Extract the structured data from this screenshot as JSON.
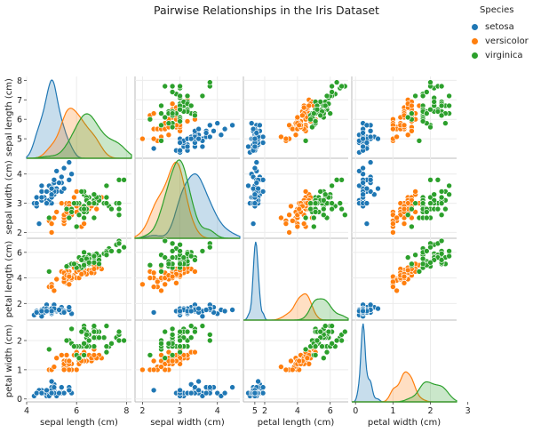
{
  "chart_data": {
    "type": "scatter",
    "title": "Pairwise Relationships in the Iris Dataset",
    "variables": [
      "sepal length (cm)",
      "sepal width (cm)",
      "petal length (cm)",
      "petal width (cm)"
    ],
    "axis_limits": [
      [
        4.0,
        8.2
      ],
      [
        1.8,
        4.6
      ],
      [
        0.7,
        7.1
      ],
      [
        -0.1,
        2.7
      ]
    ],
    "x_ticks": [
      [
        4,
        6,
        8
      ],
      [
        2,
        3,
        4,
        5
      ],
      [
        2,
        4,
        6
      ],
      [
        0,
        1,
        2,
        3
      ]
    ],
    "y_ticks": [
      [
        5,
        6,
        7,
        8
      ],
      [
        2,
        3,
        4
      ],
      [
        2,
        4,
        6
      ],
      [
        0,
        1,
        2
      ]
    ],
    "legend": {
      "title": "Species",
      "position": "top-right",
      "entries": [
        {
          "name": "setosa",
          "color": "#1f77b4"
        },
        {
          "name": "versicolor",
          "color": "#ff7f0e"
        },
        {
          "name": "virginica",
          "color": "#2ca02c"
        }
      ]
    },
    "diagonal": "kde",
    "grid": true,
    "series": [
      {
        "name": "setosa",
        "color": "#1f77b4",
        "points": [
          [
            5.1,
            3.5,
            1.4,
            0.2
          ],
          [
            4.9,
            3.0,
            1.4,
            0.2
          ],
          [
            4.7,
            3.2,
            1.3,
            0.2
          ],
          [
            4.6,
            3.1,
            1.5,
            0.2
          ],
          [
            5.0,
            3.6,
            1.4,
            0.2
          ],
          [
            5.4,
            3.9,
            1.7,
            0.4
          ],
          [
            4.6,
            3.4,
            1.4,
            0.3
          ],
          [
            5.0,
            3.4,
            1.5,
            0.2
          ],
          [
            4.4,
            2.9,
            1.4,
            0.2
          ],
          [
            4.9,
            3.1,
            1.5,
            0.1
          ],
          [
            5.4,
            3.7,
            1.5,
            0.2
          ],
          [
            4.8,
            3.4,
            1.6,
            0.2
          ],
          [
            4.8,
            3.0,
            1.4,
            0.1
          ],
          [
            4.3,
            3.0,
            1.1,
            0.1
          ],
          [
            5.8,
            4.0,
            1.2,
            0.2
          ],
          [
            5.7,
            4.4,
            1.5,
            0.4
          ],
          [
            5.4,
            3.9,
            1.3,
            0.4
          ],
          [
            5.1,
            3.5,
            1.4,
            0.3
          ],
          [
            5.7,
            3.8,
            1.7,
            0.3
          ],
          [
            5.1,
            3.8,
            1.5,
            0.3
          ],
          [
            5.4,
            3.4,
            1.7,
            0.2
          ],
          [
            5.1,
            3.7,
            1.5,
            0.4
          ],
          [
            4.6,
            3.6,
            1.0,
            0.2
          ],
          [
            5.1,
            3.3,
            1.7,
            0.5
          ],
          [
            4.8,
            3.4,
            1.9,
            0.2
          ],
          [
            5.0,
            3.0,
            1.6,
            0.2
          ],
          [
            5.0,
            3.4,
            1.6,
            0.4
          ],
          [
            5.2,
            3.5,
            1.5,
            0.2
          ],
          [
            5.2,
            3.4,
            1.4,
            0.2
          ],
          [
            4.7,
            3.2,
            1.6,
            0.2
          ],
          [
            4.8,
            3.1,
            1.6,
            0.2
          ],
          [
            5.4,
            3.4,
            1.5,
            0.4
          ],
          [
            5.2,
            4.1,
            1.5,
            0.1
          ],
          [
            5.5,
            4.2,
            1.4,
            0.2
          ],
          [
            4.9,
            3.1,
            1.5,
            0.2
          ],
          [
            5.0,
            3.2,
            1.2,
            0.2
          ],
          [
            5.5,
            3.5,
            1.3,
            0.2
          ],
          [
            4.9,
            3.6,
            1.4,
            0.1
          ],
          [
            4.4,
            3.0,
            1.3,
            0.2
          ],
          [
            5.1,
            3.4,
            1.5,
            0.2
          ],
          [
            5.0,
            3.5,
            1.3,
            0.3
          ],
          [
            4.5,
            2.3,
            1.3,
            0.3
          ],
          [
            4.4,
            3.2,
            1.3,
            0.2
          ],
          [
            5.0,
            3.5,
            1.6,
            0.6
          ],
          [
            5.1,
            3.8,
            1.9,
            0.4
          ],
          [
            4.8,
            3.0,
            1.4,
            0.3
          ],
          [
            5.1,
            3.8,
            1.6,
            0.2
          ],
          [
            4.6,
            3.2,
            1.4,
            0.2
          ],
          [
            5.3,
            3.7,
            1.5,
            0.2
          ],
          [
            5.0,
            3.3,
            1.4,
            0.2
          ]
        ]
      },
      {
        "name": "versicolor",
        "color": "#ff7f0e",
        "points": [
          [
            7.0,
            3.2,
            4.7,
            1.4
          ],
          [
            6.4,
            3.2,
            4.5,
            1.5
          ],
          [
            6.9,
            3.1,
            4.9,
            1.5
          ],
          [
            5.5,
            2.3,
            4.0,
            1.3
          ],
          [
            6.5,
            2.8,
            4.6,
            1.5
          ],
          [
            5.7,
            2.8,
            4.5,
            1.3
          ],
          [
            6.3,
            3.3,
            4.7,
            1.6
          ],
          [
            4.9,
            2.4,
            3.3,
            1.0
          ],
          [
            6.6,
            2.9,
            4.6,
            1.3
          ],
          [
            5.2,
            2.7,
            3.9,
            1.4
          ],
          [
            5.0,
            2.0,
            3.5,
            1.0
          ],
          [
            5.9,
            3.0,
            4.2,
            1.5
          ],
          [
            6.0,
            2.2,
            4.0,
            1.0
          ],
          [
            6.1,
            2.9,
            4.7,
            1.4
          ],
          [
            5.6,
            2.9,
            3.6,
            1.3
          ],
          [
            6.7,
            3.1,
            4.4,
            1.4
          ],
          [
            5.6,
            3.0,
            4.5,
            1.5
          ],
          [
            5.8,
            2.7,
            4.1,
            1.0
          ],
          [
            6.2,
            2.2,
            4.5,
            1.5
          ],
          [
            5.6,
            2.5,
            3.9,
            1.1
          ],
          [
            5.9,
            3.2,
            4.8,
            1.8
          ],
          [
            6.1,
            2.8,
            4.0,
            1.3
          ],
          [
            6.3,
            2.5,
            4.9,
            1.5
          ],
          [
            6.1,
            2.8,
            4.7,
            1.2
          ],
          [
            6.4,
            2.9,
            4.3,
            1.3
          ],
          [
            6.6,
            3.0,
            4.4,
            1.4
          ],
          [
            6.8,
            2.8,
            4.8,
            1.4
          ],
          [
            6.7,
            3.0,
            5.0,
            1.7
          ],
          [
            6.0,
            2.9,
            4.5,
            1.5
          ],
          [
            5.7,
            2.6,
            3.5,
            1.0
          ],
          [
            5.5,
            2.4,
            3.8,
            1.1
          ],
          [
            5.5,
            2.4,
            3.7,
            1.0
          ],
          [
            5.8,
            2.7,
            3.9,
            1.2
          ],
          [
            6.0,
            2.7,
            5.1,
            1.6
          ],
          [
            5.4,
            3.0,
            4.5,
            1.5
          ],
          [
            6.0,
            3.4,
            4.5,
            1.6
          ],
          [
            6.7,
            3.1,
            4.7,
            1.5
          ],
          [
            6.3,
            2.3,
            4.4,
            1.3
          ],
          [
            5.6,
            3.0,
            4.1,
            1.3
          ],
          [
            5.5,
            2.5,
            4.0,
            1.3
          ],
          [
            5.5,
            2.6,
            4.4,
            1.2
          ],
          [
            6.1,
            3.0,
            4.6,
            1.4
          ],
          [
            5.8,
            2.6,
            4.0,
            1.2
          ],
          [
            5.0,
            2.3,
            3.3,
            1.0
          ],
          [
            5.6,
            2.7,
            4.2,
            1.3
          ],
          [
            5.7,
            3.0,
            4.2,
            1.2
          ],
          [
            5.7,
            2.9,
            4.2,
            1.3
          ],
          [
            6.2,
            2.9,
            4.3,
            1.3
          ],
          [
            5.1,
            2.5,
            3.0,
            1.1
          ],
          [
            5.7,
            2.8,
            4.1,
            1.3
          ]
        ]
      },
      {
        "name": "virginica",
        "color": "#2ca02c",
        "points": [
          [
            6.3,
            3.3,
            6.0,
            2.5
          ],
          [
            5.8,
            2.7,
            5.1,
            1.9
          ],
          [
            7.1,
            3.0,
            5.9,
            2.1
          ],
          [
            6.3,
            2.9,
            5.6,
            1.8
          ],
          [
            6.5,
            3.0,
            5.8,
            2.2
          ],
          [
            7.6,
            3.0,
            6.6,
            2.1
          ],
          [
            4.9,
            2.5,
            4.5,
            1.7
          ],
          [
            7.3,
            2.9,
            6.3,
            1.8
          ],
          [
            6.7,
            2.5,
            5.8,
            1.8
          ],
          [
            7.2,
            3.6,
            6.1,
            2.5
          ],
          [
            6.5,
            3.2,
            5.1,
            2.0
          ],
          [
            6.4,
            2.7,
            5.3,
            1.9
          ],
          [
            6.8,
            3.0,
            5.5,
            2.1
          ],
          [
            5.7,
            2.5,
            5.0,
            2.0
          ],
          [
            5.8,
            2.8,
            5.1,
            2.4
          ],
          [
            6.4,
            3.2,
            5.3,
            2.3
          ],
          [
            6.5,
            3.0,
            5.5,
            1.8
          ],
          [
            7.7,
            3.8,
            6.7,
            2.2
          ],
          [
            7.7,
            2.6,
            6.9,
            2.3
          ],
          [
            6.0,
            2.2,
            5.0,
            1.5
          ],
          [
            6.9,
            3.2,
            5.7,
            2.3
          ],
          [
            5.6,
            2.8,
            4.9,
            2.0
          ],
          [
            7.7,
            2.8,
            6.7,
            2.0
          ],
          [
            6.3,
            2.7,
            4.9,
            1.8
          ],
          [
            6.7,
            3.3,
            5.7,
            2.1
          ],
          [
            7.2,
            3.2,
            6.0,
            1.8
          ],
          [
            6.2,
            2.8,
            4.8,
            1.8
          ],
          [
            6.1,
            3.0,
            4.9,
            1.8
          ],
          [
            6.4,
            2.8,
            5.6,
            2.1
          ],
          [
            7.2,
            3.0,
            5.8,
            1.6
          ],
          [
            7.4,
            2.8,
            6.1,
            1.9
          ],
          [
            7.9,
            3.8,
            6.4,
            2.0
          ],
          [
            6.4,
            2.8,
            5.6,
            2.2
          ],
          [
            6.3,
            2.8,
            5.1,
            1.5
          ],
          [
            6.1,
            2.6,
            5.6,
            1.4
          ],
          [
            7.7,
            3.0,
            6.1,
            2.3
          ],
          [
            6.3,
            3.4,
            5.6,
            2.4
          ],
          [
            6.4,
            3.1,
            5.5,
            1.8
          ],
          [
            6.0,
            3.0,
            4.8,
            1.8
          ],
          [
            6.9,
            3.1,
            5.4,
            2.1
          ],
          [
            6.7,
            3.1,
            5.6,
            2.4
          ],
          [
            6.9,
            3.1,
            5.1,
            2.3
          ],
          [
            5.8,
            2.7,
            5.1,
            1.9
          ],
          [
            6.8,
            3.2,
            5.9,
            2.3
          ],
          [
            6.7,
            3.3,
            5.7,
            2.5
          ],
          [
            6.7,
            3.0,
            5.2,
            2.3
          ],
          [
            6.3,
            2.5,
            5.0,
            1.9
          ],
          [
            6.5,
            3.0,
            5.2,
            2.0
          ],
          [
            6.2,
            3.4,
            5.4,
            2.3
          ],
          [
            5.9,
            3.0,
            5.1,
            1.8
          ]
        ]
      }
    ]
  }
}
